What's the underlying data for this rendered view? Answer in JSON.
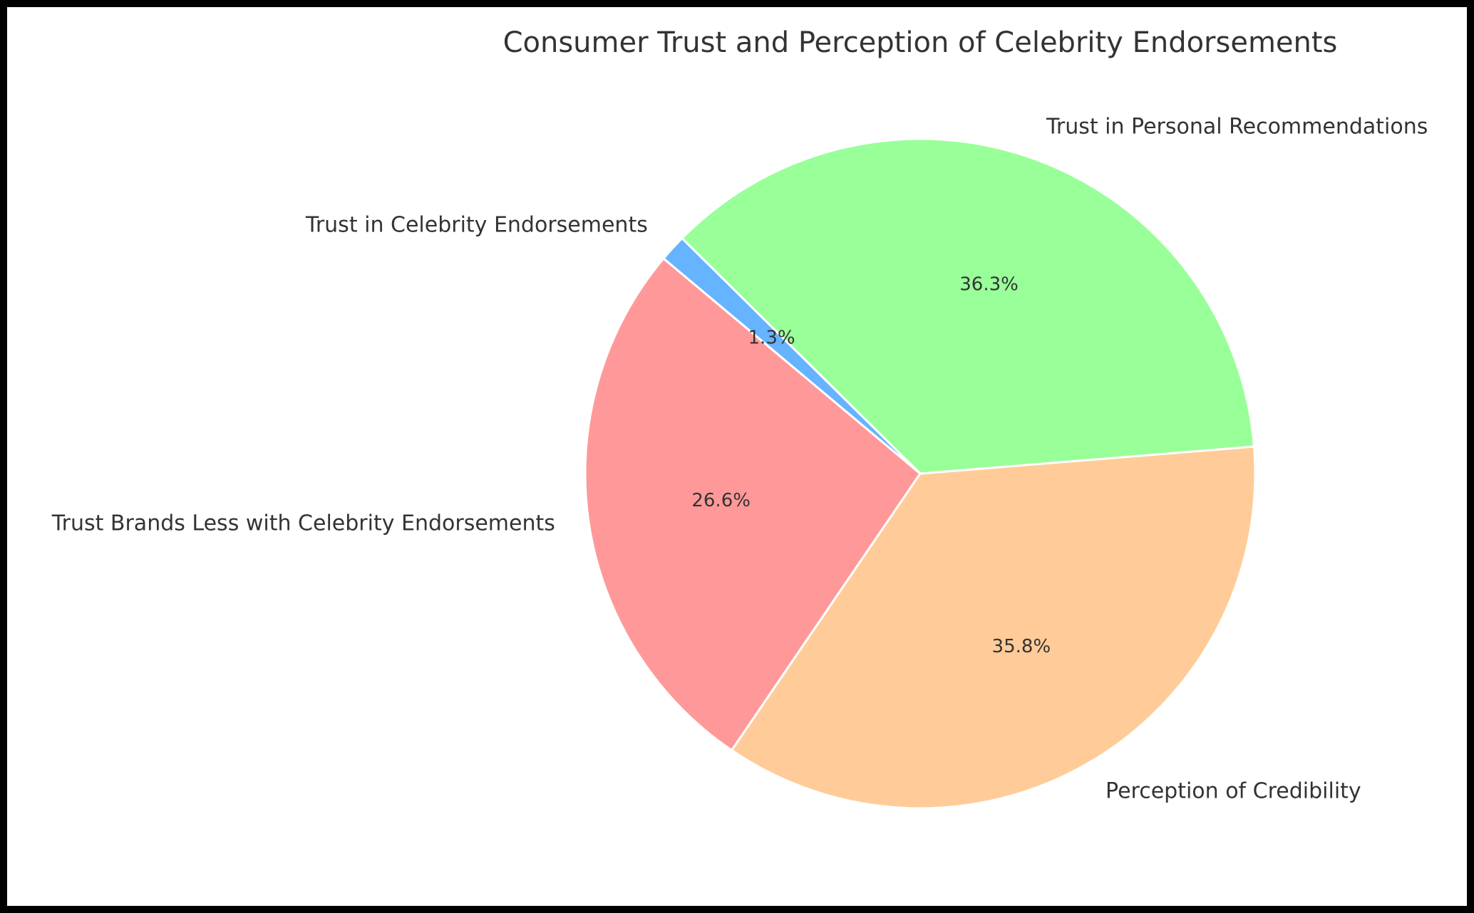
{
  "chart_data": {
    "type": "pie",
    "title": "Consumer Trust and Perception of Celebrity Endorsements",
    "start_angle_deg": 140,
    "direction": "counterclockwise",
    "slices": [
      {
        "label": "Trust Brands Less with Celebrity Endorsements",
        "value": 26.6,
        "pct_label": "26.6%",
        "color": "#ff9999"
      },
      {
        "label": "Perception of Credibility",
        "value": 35.8,
        "pct_label": "35.8%",
        "color": "#ffcc99"
      },
      {
        "label": "Trust in Personal Recommendations",
        "value": 36.3,
        "pct_label": "36.3%",
        "color": "#99ff99"
      },
      {
        "label": "Trust in Celebrity Endorsements",
        "value": 1.3,
        "pct_label": "1.3%",
        "color": "#66b3ff"
      }
    ]
  }
}
